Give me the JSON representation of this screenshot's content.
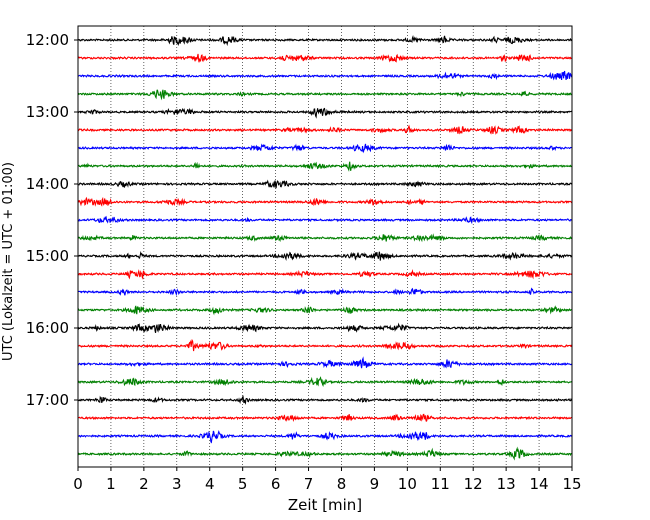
{
  "chart_data": {
    "type": "line",
    "title": "",
    "xlabel": "Zeit  [min]",
    "ylabel": "UTC (Lokalzeit = UTC + 01:00)",
    "xlim": [
      0,
      15
    ],
    "x_ticks": [
      0,
      1,
      2,
      3,
      4,
      5,
      6,
      7,
      8,
      9,
      10,
      11,
      12,
      13,
      14,
      15
    ],
    "y_tick_labels": [
      "12:00",
      "13:00",
      "14:00",
      "15:00",
      "16:00",
      "17:00"
    ],
    "grid": "vertical dotted lines at each minute",
    "legend": "none",
    "traces_per_hour": 4,
    "trace_colors": [
      "#000000",
      "#ff0000",
      "#0000ff",
      "#008000"
    ],
    "traces": [
      {
        "start": "12:00",
        "color": "#000000"
      },
      {
        "start": "12:15",
        "color": "#ff0000"
      },
      {
        "start": "12:30",
        "color": "#0000ff"
      },
      {
        "start": "12:45",
        "color": "#008000"
      },
      {
        "start": "13:00",
        "color": "#000000"
      },
      {
        "start": "13:15",
        "color": "#ff0000"
      },
      {
        "start": "13:30",
        "color": "#0000ff"
      },
      {
        "start": "13:45",
        "color": "#008000"
      },
      {
        "start": "14:00",
        "color": "#000000"
      },
      {
        "start": "14:15",
        "color": "#ff0000"
      },
      {
        "start": "14:30",
        "color": "#0000ff"
      },
      {
        "start": "14:45",
        "color": "#008000"
      },
      {
        "start": "15:00",
        "color": "#000000"
      },
      {
        "start": "15:15",
        "color": "#ff0000"
      },
      {
        "start": "15:30",
        "color": "#0000ff"
      },
      {
        "start": "15:45",
        "color": "#008000"
      },
      {
        "start": "16:00",
        "color": "#000000"
      },
      {
        "start": "16:15",
        "color": "#ff0000"
      },
      {
        "start": "16:30",
        "color": "#0000ff"
      },
      {
        "start": "16:45",
        "color": "#008000"
      },
      {
        "start": "17:00",
        "color": "#000000"
      },
      {
        "start": "17:15",
        "color": "#ff0000"
      },
      {
        "start": "17:30",
        "color": "#0000ff"
      },
      {
        "start": "17:45",
        "color": "#008000"
      }
    ]
  }
}
